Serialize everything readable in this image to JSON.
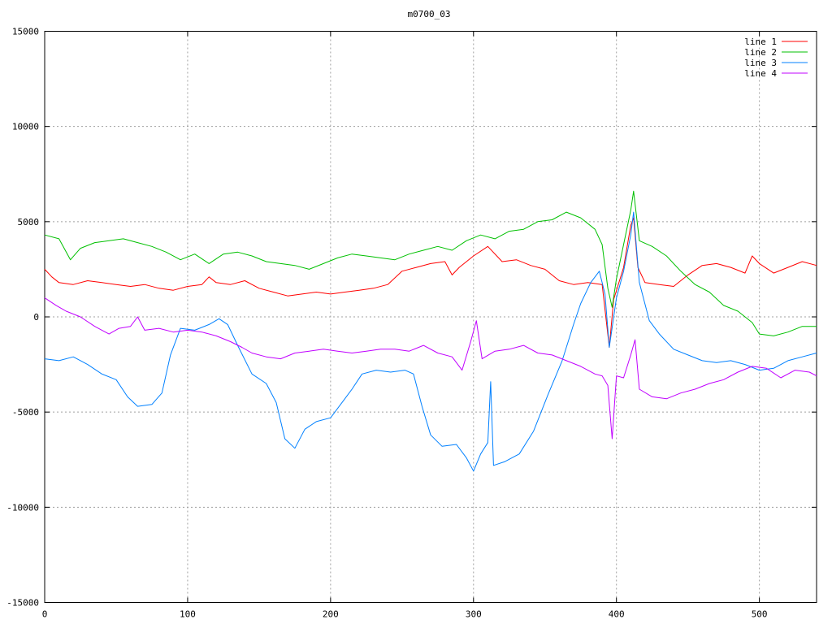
{
  "chart_data": {
    "type": "line",
    "title": "m0700_03",
    "xlabel": "",
    "ylabel": "",
    "xlim": [
      0,
      540
    ],
    "ylim": [
      -15000,
      15000
    ],
    "xticks": [
      0,
      100,
      200,
      300,
      400,
      500
    ],
    "yticks": [
      -15000,
      -10000,
      -5000,
      0,
      5000,
      10000,
      15000
    ],
    "grid": true,
    "legend_position": "top-right",
    "series": [
      {
        "name": "line 1",
        "color": "#ff0000",
        "points": [
          [
            0,
            2500
          ],
          [
            5,
            2100
          ],
          [
            10,
            1800
          ],
          [
            20,
            1700
          ],
          [
            30,
            1900
          ],
          [
            40,
            1800
          ],
          [
            50,
            1700
          ],
          [
            60,
            1600
          ],
          [
            70,
            1700
          ],
          [
            80,
            1500
          ],
          [
            90,
            1400
          ],
          [
            100,
            1600
          ],
          [
            110,
            1700
          ],
          [
            115,
            2100
          ],
          [
            120,
            1800
          ],
          [
            130,
            1700
          ],
          [
            140,
            1900
          ],
          [
            150,
            1500
          ],
          [
            160,
            1300
          ],
          [
            170,
            1100
          ],
          [
            180,
            1200
          ],
          [
            190,
            1300
          ],
          [
            200,
            1200
          ],
          [
            210,
            1300
          ],
          [
            220,
            1400
          ],
          [
            230,
            1500
          ],
          [
            240,
            1700
          ],
          [
            250,
            2400
          ],
          [
            260,
            2600
          ],
          [
            270,
            2800
          ],
          [
            280,
            2900
          ],
          [
            285,
            2200
          ],
          [
            290,
            2600
          ],
          [
            300,
            3200
          ],
          [
            310,
            3700
          ],
          [
            320,
            2900
          ],
          [
            330,
            3000
          ],
          [
            340,
            2700
          ],
          [
            350,
            2500
          ],
          [
            360,
            1900
          ],
          [
            370,
            1700
          ],
          [
            380,
            1800
          ],
          [
            390,
            1700
          ],
          [
            395,
            -1600
          ],
          [
            398,
            900
          ],
          [
            405,
            2600
          ],
          [
            410,
            4800
          ],
          [
            412,
            5200
          ],
          [
            415,
            2600
          ],
          [
            420,
            1800
          ],
          [
            430,
            1700
          ],
          [
            440,
            1600
          ],
          [
            450,
            2200
          ],
          [
            460,
            2700
          ],
          [
            470,
            2800
          ],
          [
            480,
            2600
          ],
          [
            490,
            2300
          ],
          [
            495,
            3200
          ],
          [
            500,
            2800
          ],
          [
            510,
            2300
          ],
          [
            520,
            2600
          ],
          [
            530,
            2900
          ],
          [
            540,
            2700
          ]
        ]
      },
      {
        "name": "line 2",
        "color": "#00c000",
        "points": [
          [
            0,
            4300
          ],
          [
            10,
            4100
          ],
          [
            18,
            3000
          ],
          [
            25,
            3600
          ],
          [
            35,
            3900
          ],
          [
            45,
            4000
          ],
          [
            55,
            4100
          ],
          [
            65,
            3900
          ],
          [
            75,
            3700
          ],
          [
            85,
            3400
          ],
          [
            95,
            3000
          ],
          [
            105,
            3300
          ],
          [
            115,
            2800
          ],
          [
            125,
            3300
          ],
          [
            135,
            3400
          ],
          [
            145,
            3200
          ],
          [
            155,
            2900
          ],
          [
            165,
            2800
          ],
          [
            175,
            2700
          ],
          [
            185,
            2500
          ],
          [
            195,
            2800
          ],
          [
            205,
            3100
          ],
          [
            215,
            3300
          ],
          [
            225,
            3200
          ],
          [
            235,
            3100
          ],
          [
            245,
            3000
          ],
          [
            255,
            3300
          ],
          [
            265,
            3500
          ],
          [
            275,
            3700
          ],
          [
            285,
            3500
          ],
          [
            295,
            4000
          ],
          [
            305,
            4300
          ],
          [
            315,
            4100
          ],
          [
            325,
            4500
          ],
          [
            335,
            4600
          ],
          [
            345,
            5000
          ],
          [
            355,
            5100
          ],
          [
            365,
            5500
          ],
          [
            375,
            5200
          ],
          [
            385,
            4600
          ],
          [
            390,
            3800
          ],
          [
            394,
            1500
          ],
          [
            397,
            500
          ],
          [
            400,
            2000
          ],
          [
            405,
            3800
          ],
          [
            410,
            5600
          ],
          [
            412,
            6600
          ],
          [
            416,
            4000
          ],
          [
            425,
            3700
          ],
          [
            435,
            3200
          ],
          [
            445,
            2400
          ],
          [
            455,
            1700
          ],
          [
            465,
            1300
          ],
          [
            475,
            600
          ],
          [
            485,
            300
          ],
          [
            495,
            -300
          ],
          [
            500,
            -900
          ],
          [
            510,
            -1000
          ],
          [
            520,
            -800
          ],
          [
            530,
            -500
          ],
          [
            540,
            -500
          ]
        ]
      },
      {
        "name": "line 3",
        "color": "#0080ff",
        "points": [
          [
            0,
            -2200
          ],
          [
            10,
            -2300
          ],
          [
            20,
            -2100
          ],
          [
            30,
            -2500
          ],
          [
            40,
            -3000
          ],
          [
            50,
            -3300
          ],
          [
            58,
            -4200
          ],
          [
            65,
            -4700
          ],
          [
            75,
            -4600
          ],
          [
            82,
            -4000
          ],
          [
            88,
            -2000
          ],
          [
            95,
            -600
          ],
          [
            105,
            -700
          ],
          [
            115,
            -400
          ],
          [
            122,
            -100
          ],
          [
            128,
            -400
          ],
          [
            135,
            -1500
          ],
          [
            145,
            -3000
          ],
          [
            155,
            -3500
          ],
          [
            162,
            -4500
          ],
          [
            168,
            -6400
          ],
          [
            175,
            -6900
          ],
          [
            182,
            -5900
          ],
          [
            190,
            -5500
          ],
          [
            200,
            -5300
          ],
          [
            210,
            -4300
          ],
          [
            215,
            -3800
          ],
          [
            222,
            -3000
          ],
          [
            232,
            -2800
          ],
          [
            242,
            -2900
          ],
          [
            252,
            -2800
          ],
          [
            258,
            -3000
          ],
          [
            264,
            -4700
          ],
          [
            270,
            -6200
          ],
          [
            278,
            -6800
          ],
          [
            288,
            -6700
          ],
          [
            295,
            -7400
          ],
          [
            300,
            -8100
          ],
          [
            305,
            -7200
          ],
          [
            310,
            -6600
          ],
          [
            312,
            -3400
          ],
          [
            314,
            -7800
          ],
          [
            322,
            -7600
          ],
          [
            332,
            -7200
          ],
          [
            342,
            -6000
          ],
          [
            352,
            -4100
          ],
          [
            362,
            -2300
          ],
          [
            370,
            -400
          ],
          [
            375,
            700
          ],
          [
            382,
            1800
          ],
          [
            388,
            2400
          ],
          [
            392,
            1200
          ],
          [
            395,
            -1600
          ],
          [
            400,
            1000
          ],
          [
            405,
            2400
          ],
          [
            410,
            4300
          ],
          [
            412,
            5500
          ],
          [
            416,
            1800
          ],
          [
            423,
            -200
          ],
          [
            430,
            -900
          ],
          [
            440,
            -1700
          ],
          [
            450,
            -2000
          ],
          [
            460,
            -2300
          ],
          [
            470,
            -2400
          ],
          [
            480,
            -2300
          ],
          [
            490,
            -2500
          ],
          [
            500,
            -2800
          ],
          [
            510,
            -2700
          ],
          [
            520,
            -2300
          ],
          [
            530,
            -2100
          ],
          [
            540,
            -1900
          ]
        ]
      },
      {
        "name": "line 4",
        "color": "#c000ff",
        "points": [
          [
            0,
            1000
          ],
          [
            8,
            600
          ],
          [
            15,
            300
          ],
          [
            25,
            0
          ],
          [
            35,
            -500
          ],
          [
            45,
            -900
          ],
          [
            52,
            -600
          ],
          [
            60,
            -500
          ],
          [
            65,
            0
          ],
          [
            70,
            -700
          ],
          [
            80,
            -600
          ],
          [
            90,
            -800
          ],
          [
            100,
            -700
          ],
          [
            110,
            -800
          ],
          [
            120,
            -1000
          ],
          [
            130,
            -1300
          ],
          [
            138,
            -1600
          ],
          [
            145,
            -1900
          ],
          [
            155,
            -2100
          ],
          [
            165,
            -2200
          ],
          [
            175,
            -1900
          ],
          [
            185,
            -1800
          ],
          [
            195,
            -1700
          ],
          [
            205,
            -1800
          ],
          [
            215,
            -1900
          ],
          [
            225,
            -1800
          ],
          [
            235,
            -1700
          ],
          [
            245,
            -1700
          ],
          [
            255,
            -1800
          ],
          [
            265,
            -1500
          ],
          [
            275,
            -1900
          ],
          [
            285,
            -2100
          ],
          [
            292,
            -2800
          ],
          [
            298,
            -1300
          ],
          [
            302,
            -200
          ],
          [
            306,
            -2200
          ],
          [
            315,
            -1800
          ],
          [
            325,
            -1700
          ],
          [
            335,
            -1500
          ],
          [
            345,
            -1900
          ],
          [
            355,
            -2000
          ],
          [
            365,
            -2300
          ],
          [
            375,
            -2600
          ],
          [
            385,
            -3000
          ],
          [
            390,
            -3100
          ],
          [
            394,
            -3600
          ],
          [
            397,
            -6400
          ],
          [
            400,
            -3100
          ],
          [
            405,
            -3200
          ],
          [
            410,
            -2000
          ],
          [
            413,
            -1200
          ],
          [
            416,
            -3800
          ],
          [
            425,
            -4200
          ],
          [
            435,
            -4300
          ],
          [
            445,
            -4000
          ],
          [
            455,
            -3800
          ],
          [
            465,
            -3500
          ],
          [
            475,
            -3300
          ],
          [
            485,
            -2900
          ],
          [
            495,
            -2600
          ],
          [
            505,
            -2700
          ],
          [
            515,
            -3200
          ],
          [
            525,
            -2800
          ],
          [
            535,
            -2900
          ],
          [
            540,
            -3100
          ]
        ]
      }
    ]
  }
}
